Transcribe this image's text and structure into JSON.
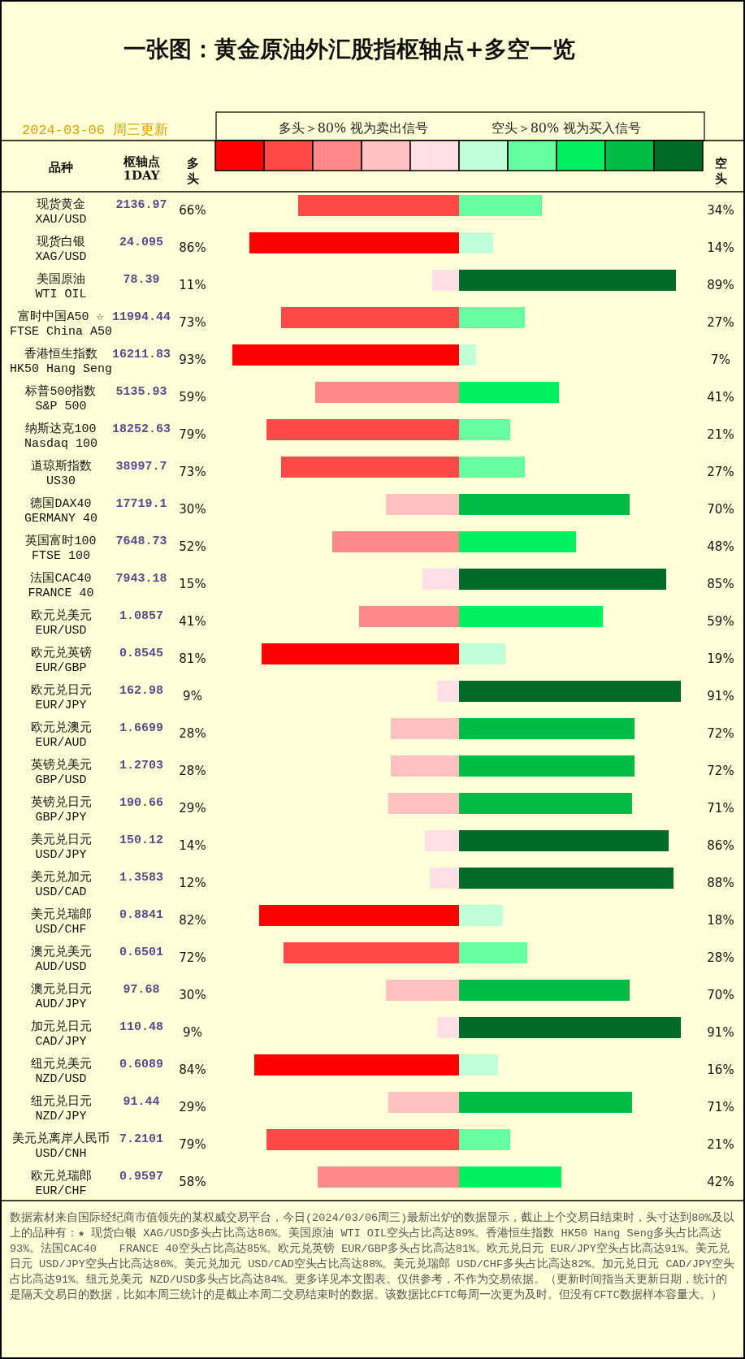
{
  "chart_data": [
    {
      "type": "bar",
      "orientation": "horizontal",
      "title": "一张图：黄金原油外汇股指枢轴点+多空一览",
      "subtitle": "2024-03-06 周三更新",
      "ylabel": "品种",
      "categories": [
        "现货黄金\nXAU/USD",
        "现货白银\nXAG/USD",
        "美国原油\nWTI OIL",
        "富时中国A50 ☆\nFTSE China A50",
        "香港恒生指数\nHK50 Hang Seng",
        "标普500指数\nS&P 500",
        "纳斯达克100\nNasdaq 100",
        "道琼斯指数\nUS30",
        "德国DAX40\nGERMANY 40",
        "英国富时100\nFTSE 100",
        "法国CAC40\nFRANCE 40",
        "欧元兑美元\nEUR/USD",
        "欧元兑英镑\nEUR/GBP",
        "欧元兑日元\nEUR/JPY",
        "欧元兑澳元\nEUR/AUD",
        "英镑兑美元\nGBP/USD",
        "英镑兑日元\nGBP/JPY",
        "美元兑日元\nUSD/JPY",
        "美元兑加元\nUSD/CAD",
        "美元兑瑞郎\nUSD/CHF",
        "澳元兑美元\nAUD/USD",
        "澳元兑日元\nAUD/JPY",
        "加元兑日元\nCAD/JPY",
        "纽元兑美元\nNZD/USD",
        "纽元兑日元\nNZD/JPY",
        "美元兑离岸人民币\nUSD/CNH",
        "欧元兑瑞郎\nEUR/CHF"
      ],
      "xlim": [
        100,
        0
      ],
      "tick_labels": "y",
      "legend": "top",
      "series": [
        {
          "name": "多头",
          "values": [
            66,
            86,
            11,
            73,
            93,
            59,
            79,
            73,
            30,
            52,
            15,
            41,
            81,
            9,
            28,
            28,
            29,
            14,
            12,
            82,
            72,
            30,
            9,
            84,
            29,
            79,
            58
          ],
          "colors": [
            "#ff4848",
            "#ff0000",
            "#ffe0e6",
            "#ff4848",
            "#ff0000",
            "#ff8888",
            "#ff4848",
            "#ff4848",
            "#ffc0c0",
            "#ff8888",
            "#ffe0e6",
            "#ff8888",
            "#ff0000",
            "#ffe0e6",
            "#ffc0c0",
            "#ffc0c0",
            "#ffc0c0",
            "#ffe0e6",
            "#ffe0e6",
            "#ff0000",
            "#ff4848",
            "#ffc0c0",
            "#ffe0e6",
            "#ff0000",
            "#ffc0c0",
            "#ff4848",
            "#ff8888"
          ],
          "value_labels": [
            "66%",
            "86%",
            "11%",
            "73%",
            "93%",
            "59%",
            "79%",
            "73%",
            "30%",
            "52%",
            "15%",
            "41%",
            "81%",
            "9%",
            "28%",
            "28%",
            "29%",
            "14%",
            "12%",
            "82%",
            "72%",
            "30%",
            "9%",
            "84%",
            "29%",
            "79%",
            "58%"
          ]
        }
      ],
      "annotations": [
        "枢轴点\n1DAY",
        "多头＞80% 视为卖出信号",
        "空头＞80% 视为买入信号",
        "2136.97",
        "24.095",
        "78.39",
        "11994.44",
        "16211.83",
        "5135.93",
        "18252.63",
        "38997.7",
        "17719.1",
        "7648.73",
        "7943.18",
        "1.0857",
        "0.8545",
        "162.98",
        "1.6699",
        "1.2703",
        "190.66",
        "150.12",
        "1.3583",
        "0.8841",
        "0.6501",
        "97.68",
        "110.48",
        "0.6089",
        "91.44",
        "7.2101",
        "0.9597",
        "数据素材来自国际经纪商市值领先的某权威交易平台，今日(2024/03/06周三)最新出炉的数据显示，截止上个交易日结束时，头寸达到80%及以上的品种有：★ 现货白银 XAG/USD多头占比高达86%。美国原油 WTI OIL空头占比高达89%。香港恒生指数 HK50 Hang Seng多头占比高达93%。法国CAC40　　FRANCE 40空头占比高达85%。欧元兑英镑 EUR/GBP多头占比高达81%。欧元兑日元 EUR/JPY空头占比高达91%。美元兑日元 USD/JPY空头占比高达86%。美元兑加元 USD/CAD空头占比高达88%。美元兑瑞郎 USD/CHF多头占比高达82%。加元兑日元 CAD/JPY空头占比高达91%。纽元兑美元 NZD/USD多头占比高达84%。更多详见本文图表。仅供参考，不作为交易依据。（更新时间指当天更新日期，统计的是隔天交易日的数据，比如本周三统计的是截止本周二交易结束时的数据。该数据比CFTC每周一次更为及时。但没有CFTC数据样本容量大。）"
      ]
    },
    {
      "type": "bar",
      "orientation": "horizontal",
      "categories": [
        "现货黄金\nXAU/USD",
        "现货白银\nXAG/USD",
        "美国原油\nWTI OIL",
        "富时中国A50 ☆\nFTSE China A50",
        "香港恒生指数\nHK50 Hang Seng",
        "标普500指数\nS&P 500",
        "纳斯达克100\nNasdaq 100",
        "道琼斯指数\nUS30",
        "德国DAX40\nGERMANY 40",
        "英国富时100\nFTSE 100",
        "法国CAC40\nFRANCE 40",
        "欧元兑美元\nEUR/USD",
        "欧元兑英镑\nEUR/GBP",
        "欧元兑日元\nEUR/JPY",
        "欧元兑澳元\nEUR/AUD",
        "英镑兑美元\nGBP/USD",
        "英镑兑日元\nGBP/JPY",
        "美元兑日元\nUSD/JPY",
        "美元兑加元\nUSD/CAD",
        "美元兑瑞郎\nUSD/CHF",
        "澳元兑美元\nAUD/USD",
        "澳元兑日元\nAUD/JPY",
        "加元兑日元\nCAD/JPY",
        "纽元兑美元\nNZD/USD",
        "纽元兑日元\nNZD/JPY",
        "美元兑离岸人民币\nUSD/CNH",
        "欧元兑瑞郎\nEUR/CHF"
      ],
      "xlim": [
        0,
        100
      ],
      "tick_labels": false,
      "legend": "top",
      "series": [
        {
          "name": "空头",
          "values": [
            34,
            14,
            89,
            27,
            7,
            41,
            21,
            27,
            70,
            48,
            85,
            59,
            19,
            91,
            72,
            72,
            71,
            86,
            88,
            18,
            28,
            70,
            91,
            16,
            71,
            21,
            42
          ],
          "colors": [
            "#66ffa0",
            "#c0ffd8",
            "#006a2a",
            "#66ffa0",
            "#c0ffd8",
            "#00f060",
            "#66ffa0",
            "#66ffa0",
            "#00bb44",
            "#00f060",
            "#006a2a",
            "#00f060",
            "#c0ffd8",
            "#006a2a",
            "#00bb44",
            "#00bb44",
            "#00bb44",
            "#006a2a",
            "#006a2a",
            "#c0ffd8",
            "#66ffa0",
            "#00bb44",
            "#006a2a",
            "#c0ffd8",
            "#00bb44",
            "#66ffa0",
            "#00f060"
          ],
          "value_labels": [
            "34%",
            "14%",
            "89%",
            "27%",
            "7%",
            "41%",
            "21%",
            "27%",
            "70%",
            "48%",
            "85%",
            "59%",
            "19%",
            "91%",
            "72%",
            "72%",
            "71%",
            "86%",
            "88%",
            "18%",
            "28%",
            "70%",
            "91%",
            "16%",
            "71%",
            "21%",
            "42%"
          ]
        }
      ]
    }
  ]
}
